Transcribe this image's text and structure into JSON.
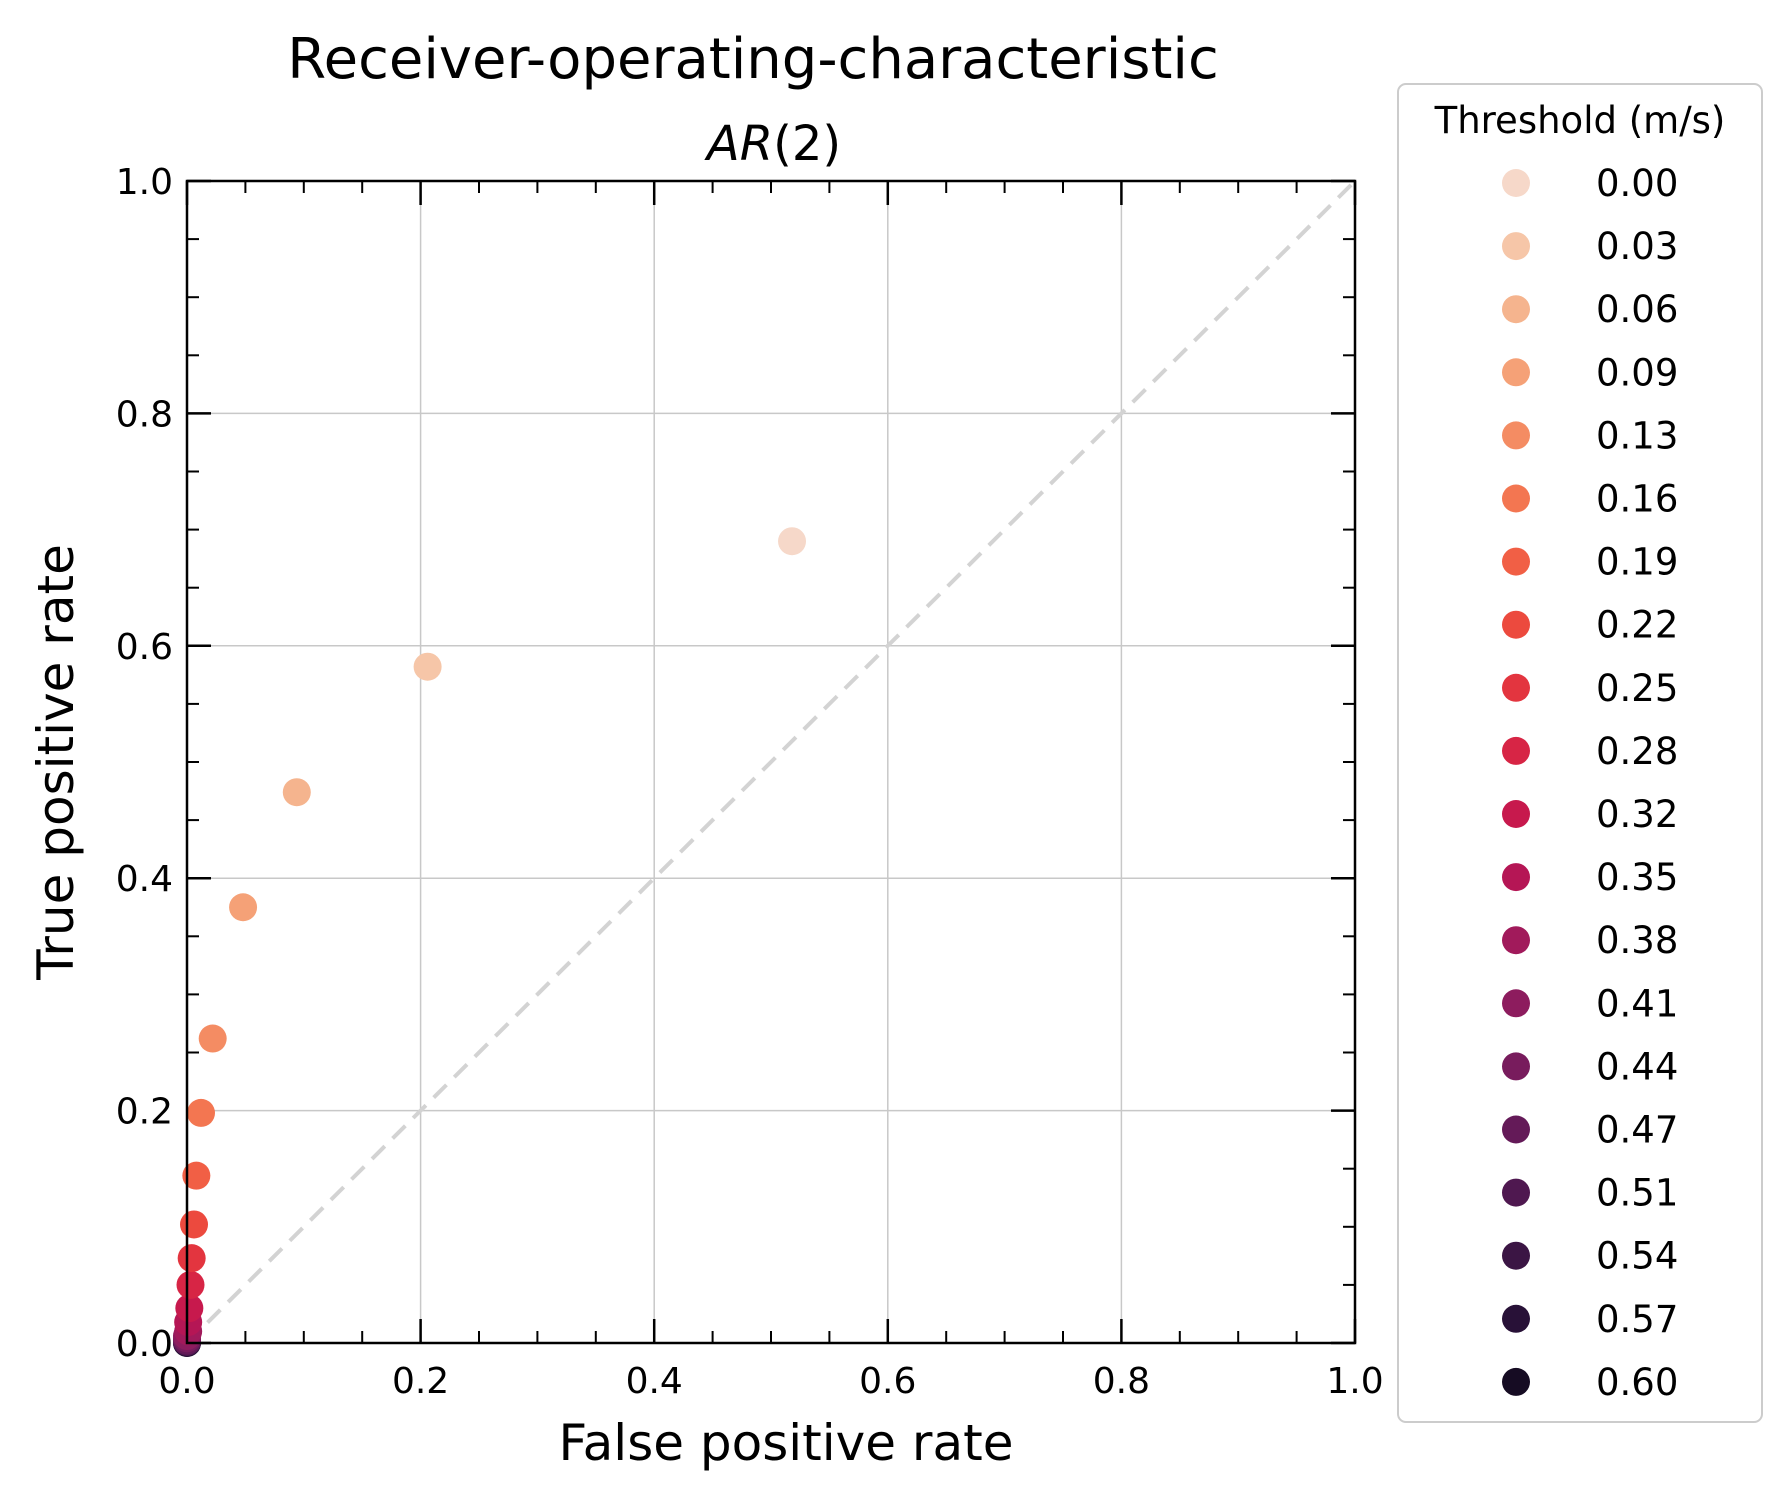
{
  "chart_data": {
    "type": "scatter",
    "title": "Receiver-operating-characteristic",
    "subtitle_base": "AR",
    "subtitle_arg": "(2)",
    "xlabel": "False positive rate",
    "ylabel": "True positive rate",
    "xlim": [
      0.0,
      1.0
    ],
    "ylim": [
      0.0,
      1.0
    ],
    "x_ticks": [
      "0.0",
      "0.2",
      "0.4",
      "0.6",
      "0.8",
      "1.0"
    ],
    "y_ticks": [
      "0.0",
      "0.2",
      "0.4",
      "0.6",
      "0.8",
      "1.0"
    ],
    "grid": true,
    "reference_line": {
      "from": [
        0,
        0
      ],
      "to": [
        1,
        1
      ],
      "style": "dashed",
      "color": "#d3d3d3"
    },
    "legend": {
      "title": "Threshold (m/s)",
      "placement": "outside-right"
    },
    "series": [
      {
        "name": "0.00",
        "x": 0.518,
        "y": 0.69,
        "color": "#f6d8c9"
      },
      {
        "name": "0.03",
        "x": 0.206,
        "y": 0.582,
        "color": "#f6c6a8"
      },
      {
        "name": "0.06",
        "x": 0.094,
        "y": 0.474,
        "color": "#f5b48e"
      },
      {
        "name": "0.09",
        "x": 0.048,
        "y": 0.375,
        "color": "#f5a177"
      },
      {
        "name": "0.13",
        "x": 0.022,
        "y": 0.262,
        "color": "#f48c63"
      },
      {
        "name": "0.16",
        "x": 0.012,
        "y": 0.198,
        "color": "#f37651"
      },
      {
        "name": "0.19",
        "x": 0.008,
        "y": 0.144,
        "color": "#f15f45"
      },
      {
        "name": "0.22",
        "x": 0.006,
        "y": 0.102,
        "color": "#ec4a3e"
      },
      {
        "name": "0.25",
        "x": 0.004,
        "y": 0.073,
        "color": "#e3353f"
      },
      {
        "name": "0.28",
        "x": 0.003,
        "y": 0.05,
        "color": "#d72545"
      },
      {
        "name": "0.32",
        "x": 0.002,
        "y": 0.03,
        "color": "#c7194d"
      },
      {
        "name": "0.35",
        "x": 0.001,
        "y": 0.018,
        "color": "#b51655"
      },
      {
        "name": "0.38",
        "x": 0.001,
        "y": 0.01,
        "color": "#a11a5b"
      },
      {
        "name": "0.41",
        "x": 0.0,
        "y": 0.006,
        "color": "#8d1c5e"
      },
      {
        "name": "0.44",
        "x": 0.0,
        "y": 0.004,
        "color": "#781c5d"
      },
      {
        "name": "0.47",
        "x": 0.0,
        "y": 0.002,
        "color": "#641a58"
      },
      {
        "name": "0.51",
        "x": 0.0,
        "y": 0.001,
        "color": "#4f1850"
      },
      {
        "name": "0.54",
        "x": 0.0,
        "y": 0.001,
        "color": "#3b1544"
      },
      {
        "name": "0.57",
        "x": 0.0,
        "y": 0.0,
        "color": "#281137"
      },
      {
        "name": "0.60",
        "x": 0.0,
        "y": 0.0,
        "color": "#160c23"
      }
    ]
  }
}
